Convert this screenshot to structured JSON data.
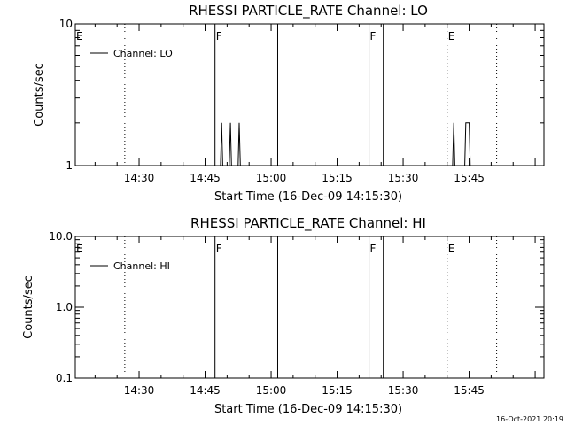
{
  "footer": {
    "timestamp": "16-Oct-2021 20:19"
  },
  "chart_data": [
    {
      "type": "line",
      "title": "RHESSI PARTICLE_RATE Channel: LO",
      "xlabel": "Start Time (16-Dec-09 14:15:30)",
      "ylabel": "Counts/sec",
      "yscale": "log",
      "xlim": [
        "14:15:30",
        "16:02:00"
      ],
      "ylim": [
        1,
        10
      ],
      "x_ticks": [
        "14:30",
        "14:45",
        "15:00",
        "15:15",
        "15:30",
        "15:45"
      ],
      "y_ticks": [
        "1",
        "10"
      ],
      "legend": {
        "position": "top-left",
        "entries": [
          "Channel: LO"
        ]
      },
      "series": [
        {
          "name": "Channel: LO",
          "points": [
            [
              "14:48:30",
              1
            ],
            [
              "14:48:45",
              2
            ],
            [
              "14:49:00",
              1
            ],
            [
              "14:50:30",
              1
            ],
            [
              "14:50:45",
              2
            ],
            [
              "14:51:00",
              1
            ],
            [
              "14:52:30",
              1
            ],
            [
              "14:52:45",
              2
            ],
            [
              "14:53:00",
              1
            ],
            [
              "15:41:15",
              1
            ],
            [
              "15:41:30",
              2
            ],
            [
              "15:41:45",
              1
            ],
            [
              "15:44:00",
              1
            ],
            [
              "15:44:15",
              2
            ],
            [
              "15:45:00",
              2
            ],
            [
              "15:45:15",
              1
            ]
          ]
        }
      ],
      "markers": [
        {
          "time": "14:15:30",
          "style": "dotted",
          "flag": "E"
        },
        {
          "time": "14:26:45",
          "style": "dotted",
          "flag": ""
        },
        {
          "time": "14:47:15",
          "style": "solid",
          "flag": "F"
        },
        {
          "time": "15:01:30",
          "style": "solid",
          "flag": ""
        },
        {
          "time": "15:22:15",
          "style": "solid",
          "flag": "F"
        },
        {
          "time": "15:25:30",
          "style": "solid",
          "flag": ""
        },
        {
          "time": "15:40:00",
          "style": "dotted",
          "flag": "E"
        },
        {
          "time": "15:51:15",
          "style": "dotted",
          "flag": ""
        }
      ]
    },
    {
      "type": "line",
      "title": "RHESSI PARTICLE_RATE Channel: HI",
      "xlabel": "Start Time (16-Dec-09 14:15:30)",
      "ylabel": "Counts/sec",
      "yscale": "log",
      "xlim": [
        "14:15:30",
        "16:02:00"
      ],
      "ylim": [
        0.1,
        10
      ],
      "x_ticks": [
        "14:30",
        "14:45",
        "15:00",
        "15:15",
        "15:30",
        "15:45"
      ],
      "y_ticks": [
        "0.1",
        "1.0",
        "10.0"
      ],
      "legend": {
        "position": "top-left",
        "entries": [
          "Channel: HI"
        ]
      },
      "series": [
        {
          "name": "Channel: HI",
          "points": []
        }
      ],
      "markers": [
        {
          "time": "14:15:30",
          "style": "dotted",
          "flag": "E"
        },
        {
          "time": "14:26:45",
          "style": "dotted",
          "flag": ""
        },
        {
          "time": "14:47:15",
          "style": "solid",
          "flag": "F"
        },
        {
          "time": "15:01:30",
          "style": "solid",
          "flag": ""
        },
        {
          "time": "15:22:15",
          "style": "solid",
          "flag": "F"
        },
        {
          "time": "15:25:30",
          "style": "solid",
          "flag": ""
        },
        {
          "time": "15:40:00",
          "style": "dotted",
          "flag": "E"
        },
        {
          "time": "15:51:15",
          "style": "dotted",
          "flag": ""
        }
      ]
    }
  ]
}
